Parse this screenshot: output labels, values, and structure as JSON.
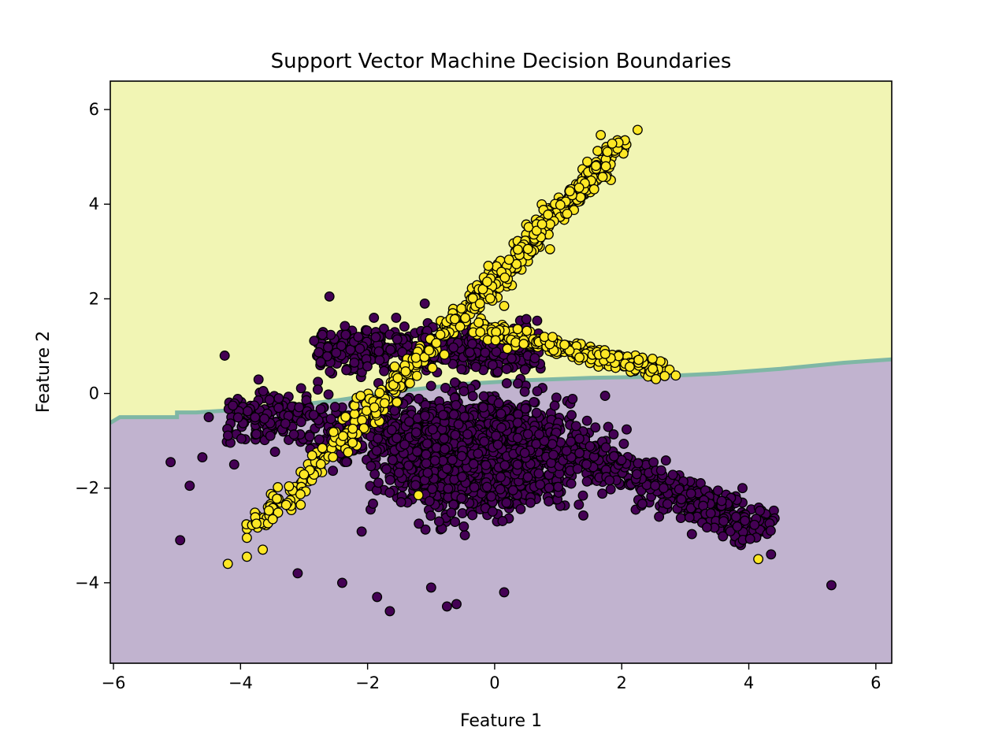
{
  "chart_data": {
    "type": "scatter",
    "title": "Support Vector Machine Decision Boundaries",
    "xlabel": "Feature 1",
    "ylabel": "Feature 2",
    "xlim": [
      -6.05,
      6.25
    ],
    "ylim": [
      -5.7,
      6.6
    ],
    "xticks": [
      -6,
      -4,
      -2,
      0,
      2,
      4,
      6
    ],
    "yticks": [
      -4,
      -2,
      0,
      2,
      4,
      6
    ],
    "grid": false,
    "legend": "none",
    "colors": {
      "class_0": "#440154",
      "class_1": "#fde725",
      "region_0": "#c1b3cf",
      "region_1": "#f1f5b4",
      "boundary": "#7fb7a5",
      "marker_edge": "#000000"
    },
    "decision_boundary": [
      [
        -6.05,
        -0.62
      ],
      [
        -5.9,
        -0.5
      ],
      [
        -5.0,
        -0.5
      ],
      [
        -5.0,
        -0.4
      ],
      [
        -4.7,
        -0.4
      ],
      [
        -3.5,
        -0.3
      ],
      [
        -2.5,
        -0.15
      ],
      [
        -1.5,
        0.05
      ],
      [
        -0.5,
        0.2
      ],
      [
        0.5,
        0.28
      ],
      [
        1.5,
        0.33
      ],
      [
        2.4,
        0.35
      ],
      [
        3.5,
        0.42
      ],
      [
        4.5,
        0.52
      ],
      [
        5.5,
        0.65
      ],
      [
        6.25,
        0.72
      ]
    ],
    "series": [
      {
        "class": 0,
        "color": "#440154",
        "clusters": [
          {
            "kind": "blob",
            "center": [
              -0.3,
              -1.3
            ],
            "spread": [
              1.25,
              1.0
            ],
            "n": 1700
          },
          {
            "kind": "band",
            "from": [
              -2.8,
              0.9
            ],
            "to": [
              0.7,
              1.0
            ],
            "width": 0.45,
            "n": 500
          },
          {
            "kind": "band",
            "from": [
              0.0,
              -0.6
            ],
            "to": [
              4.3,
              -2.9
            ],
            "width": 0.45,
            "n": 500
          },
          {
            "kind": "band",
            "from": [
              -4.2,
              -0.4
            ],
            "to": [
              -1.0,
              -0.9
            ],
            "width": 0.6,
            "n": 300
          }
        ],
        "outliers": [
          [
            5.3,
            -4.05
          ],
          [
            -4.95,
            -3.1
          ],
          [
            -5.1,
            -1.45
          ],
          [
            -4.6,
            -1.35
          ],
          [
            -4.8,
            -1.95
          ],
          [
            -4.25,
            0.8
          ],
          [
            -2.6,
            2.05
          ],
          [
            -1.65,
            -4.6
          ],
          [
            -1.85,
            -4.3
          ],
          [
            -0.75,
            -4.5
          ],
          [
            -0.6,
            -4.45
          ],
          [
            0.15,
            -4.2
          ],
          [
            -1.0,
            -4.1
          ],
          [
            3.9,
            -2.0
          ],
          [
            4.35,
            -3.4
          ],
          [
            -3.1,
            -3.8
          ],
          [
            -2.4,
            -4.0
          ],
          [
            -1.9,
            1.6
          ],
          [
            -1.55,
            1.6
          ],
          [
            -1.1,
            1.9
          ],
          [
            -4.5,
            -0.5
          ],
          [
            -4.1,
            -1.5
          ]
        ]
      },
      {
        "class": 1,
        "color": "#fde725",
        "clusters": [
          {
            "kind": "band",
            "from": [
              -3.8,
              -2.9
            ],
            "to": [
              -0.4,
              1.8
            ],
            "width": 0.22,
            "n": 260
          },
          {
            "kind": "band",
            "from": [
              -0.4,
              1.8
            ],
            "to": [
              2.0,
              5.3
            ],
            "width": 0.18,
            "n": 420
          },
          {
            "kind": "band",
            "from": [
              -0.3,
              1.4
            ],
            "to": [
              2.7,
              0.45
            ],
            "width": 0.15,
            "n": 280
          }
        ],
        "outliers": [
          [
            -4.2,
            -3.6
          ],
          [
            -3.9,
            -3.45
          ],
          [
            -3.9,
            -3.05
          ],
          [
            -3.65,
            -3.3
          ],
          [
            -3.75,
            -2.75
          ],
          [
            2.25,
            5.57
          ],
          [
            2.05,
            5.35
          ],
          [
            1.95,
            5.3
          ],
          [
            2.85,
            0.38
          ],
          [
            4.15,
            -3.5
          ],
          [
            -1.2,
            -2.15
          ],
          [
            0.15,
            1.85
          ],
          [
            1.85,
            5.28
          ],
          [
            1.75,
            4.8
          ]
        ]
      }
    ]
  }
}
